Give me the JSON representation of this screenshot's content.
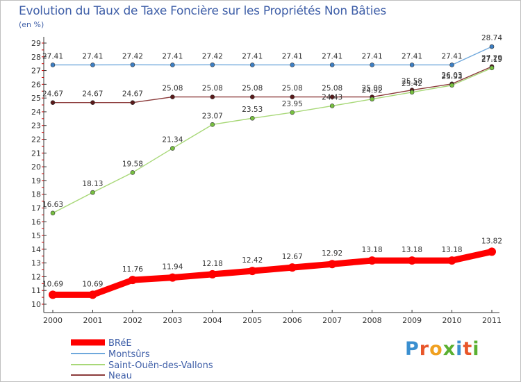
{
  "title": "Evolution du Taux de Taxe Foncière sur les Propriétés Non Bâties",
  "unit": "(en %)",
  "logo": {
    "text": "Proxiti",
    "letter_colors": [
      "#3a8fd0",
      "#e8562a",
      "#f0a020",
      "#5ab031",
      "#3a8fd0",
      "#e8562a",
      "#5ab031"
    ]
  },
  "colors": {
    "axis": "#333333",
    "grid": "#cccccc",
    "ref_tick": "#cc0000"
  },
  "chart_data": {
    "type": "line",
    "title": "Evolution du Taux de Taxe Foncière sur les Propriétés Non Bâties",
    "ylabel": "(en %)",
    "xlabel": "",
    "x": [
      "2000",
      "2001",
      "2002",
      "2003",
      "2004",
      "2005",
      "2006",
      "2007",
      "2008",
      "2009",
      "2010",
      "2011"
    ],
    "ylim": [
      10,
      29
    ],
    "yticks": [
      "10",
      "11",
      "12",
      "13",
      "14",
      "15",
      "16",
      "17",
      "18",
      "19",
      "20",
      "21",
      "22",
      "23",
      "24",
      "25",
      "26",
      "27",
      "28",
      "29"
    ],
    "grid": false,
    "legend_position": "bottom-left",
    "series": [
      {
        "name": "BRéE",
        "color": "#ff0000",
        "marker": "#ff0000",
        "values": [
          10.69,
          10.69,
          11.76,
          11.94,
          12.18,
          12.42,
          12.67,
          12.92,
          13.18,
          13.18,
          13.18,
          13.82
        ],
        "labels": [
          "10.69",
          "10.69",
          "11.76",
          "11.94",
          "12.18",
          "12.42",
          "12.67",
          "12.92",
          "13.18",
          "13.18",
          "13.18",
          "13.82"
        ]
      },
      {
        "name": "Montsûrs",
        "color": "#6fa8dc",
        "marker": "#3d7fc4",
        "values": [
          27.41,
          27.41,
          27.42,
          27.41,
          27.42,
          27.41,
          27.41,
          27.41,
          27.41,
          27.41,
          27.41,
          28.74
        ],
        "labels": [
          "27.41",
          "27.41",
          "27.42",
          "27.41",
          "27.42",
          "27.41",
          "27.41",
          "27.41",
          "27.41",
          "27.41",
          "27.41",
          "28.74"
        ]
      },
      {
        "name": "Saint-Ouën-des-Vallons",
        "color": "#a8d878",
        "marker": "#77c040",
        "values": [
          16.63,
          18.13,
          19.58,
          21.34,
          23.07,
          23.53,
          23.95,
          24.43,
          24.92,
          25.42,
          25.93,
          27.19
        ],
        "labels": [
          "16.63",
          "18.13",
          "19.58",
          "21.34",
          "23.07",
          "23.53",
          "23.95",
          "24.43",
          "24.92",
          "25.42",
          "25.93",
          "27.19"
        ]
      },
      {
        "name": "Neau",
        "color": "#8b3a3a",
        "marker": "#5a1a1a",
        "values": [
          24.67,
          24.67,
          24.67,
          25.08,
          25.08,
          25.08,
          25.08,
          25.08,
          25.08,
          25.58,
          26.03,
          27.29
        ],
        "labels": [
          "24.67",
          "24.67",
          "24.67",
          "25.08",
          "25.08",
          "25.08",
          "25.08",
          "25.08",
          "25.08",
          "25.58",
          "26.03",
          "27.29"
        ]
      }
    ]
  }
}
